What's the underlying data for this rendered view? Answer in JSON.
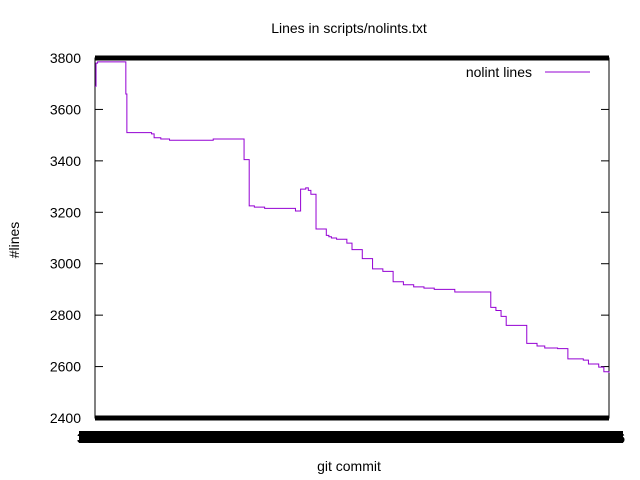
{
  "chart_data": {
    "type": "line",
    "title": "Lines in scripts/nolints.txt",
    "xlabel": "git commit",
    "ylabel": "#lines",
    "ylim": [
      2400,
      3800
    ],
    "yticks": [
      2400,
      2600,
      2800,
      3000,
      3200,
      3400,
      3600,
      3800
    ],
    "xlim": [
      0,
      1000
    ],
    "xtick_labels": {
      "first": "3",
      "last": "6"
    },
    "grid": false,
    "legend": "top-right",
    "series": [
      {
        "name": "nolint lines",
        "color": "#9400d3",
        "step": true,
        "x": [
          0,
          2,
          5,
          60,
          62,
          110,
          115,
          128,
          145,
          200,
          230,
          290,
          300,
          310,
          330,
          390,
          400,
          410,
          415,
          420,
          430,
          450,
          455,
          460,
          470,
          480,
          490,
          500,
          520,
          540,
          560,
          580,
          600,
          620,
          640,
          660,
          700,
          770,
          780,
          790,
          800,
          840,
          860,
          875,
          900,
          920,
          950,
          960,
          980,
          990,
          1000
        ],
        "values": [
          3690,
          3780,
          3785,
          3660,
          3510,
          3505,
          3490,
          3485,
          3480,
          3480,
          3485,
          3405,
          3225,
          3220,
          3215,
          3205,
          3290,
          3295,
          3285,
          3270,
          3135,
          3110,
          3105,
          3100,
          3095,
          3095,
          3080,
          3055,
          3020,
          2980,
          2970,
          2930,
          2918,
          2910,
          2905,
          2900,
          2890,
          2830,
          2818,
          2795,
          2760,
          2690,
          2680,
          2672,
          2670,
          2630,
          2625,
          2610,
          2598,
          2580,
          2575
        ]
      }
    ]
  }
}
